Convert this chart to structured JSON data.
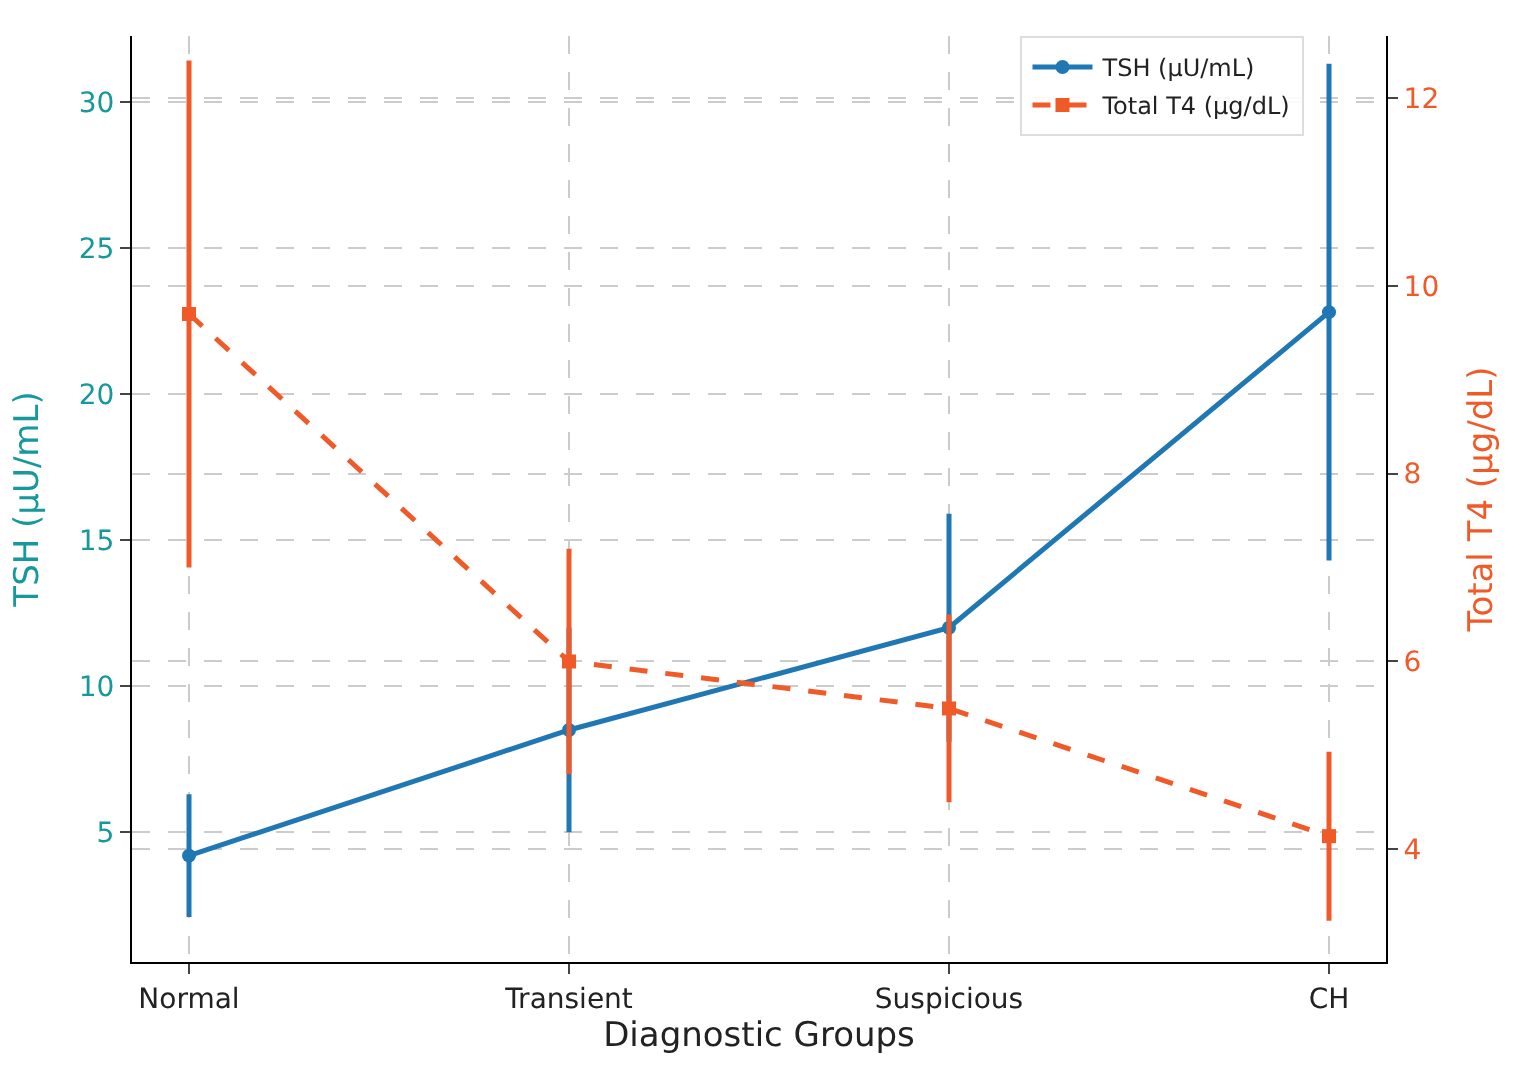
{
  "chart_data": {
    "type": "line",
    "xlabel": "Diagnostic Groups",
    "ylabel": "TSH (µU/mL)",
    "y2label": "Total T4 (µg/dL)",
    "categories": [
      "Normal",
      "Transient",
      "Suspicious",
      "CH"
    ],
    "series": [
      {
        "name": "TSH (µU/mL)",
        "color": "#1f77b4",
        "values": [
          4.2,
          8.5,
          12.0,
          22.8
        ],
        "errors": [
          2.1,
          3.5,
          3.9,
          8.5
        ],
        "marker": "circle",
        "line_style": "solid"
      },
      {
        "name": "Total T4 (µg/dL)",
        "color": "#f05a28",
        "values": [
          9.7,
          6.0,
          5.5,
          4.14
        ],
        "errors": [
          2.7,
          1.2,
          1.0,
          0.9
        ],
        "marker": "square",
        "line_style": "dashed",
        "axis": "y2"
      }
    ],
    "ylim": [
      0.56,
      32.25
    ],
    "yticks": [
      5,
      10,
      15,
      20,
      25,
      30
    ],
    "y2lim": [
      2.8,
      12.66
    ],
    "y2ticks": [
      4,
      6,
      8,
      10,
      12
    ],
    "grid": true,
    "legend": "top right"
  }
}
